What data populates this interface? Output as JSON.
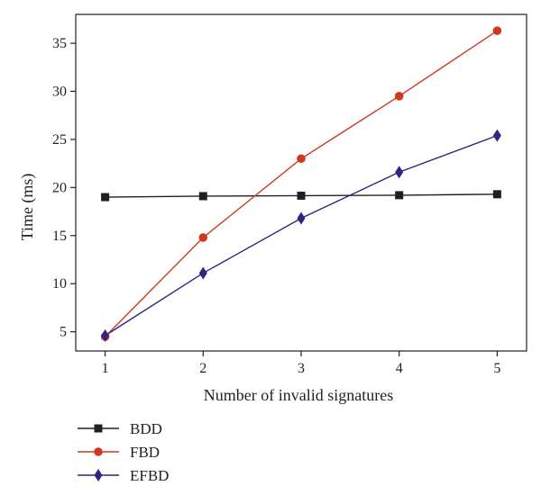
{
  "chart_data": {
    "type": "line",
    "xlabel": "Number of invalid signatures",
    "ylabel": "Time (ms)",
    "x": [
      1,
      2,
      3,
      4,
      5
    ],
    "xticks": [
      1,
      2,
      3,
      4,
      5
    ],
    "yticks": [
      5,
      10,
      15,
      20,
      25,
      30,
      35
    ],
    "xlim": [
      0.7,
      5.3
    ],
    "ylim": [
      3,
      38
    ],
    "grid": false,
    "legend_position": "bottom-left",
    "series": [
      {
        "name": "BDD",
        "values": [
          19.0,
          19.1,
          19.15,
          19.2,
          19.3
        ],
        "color": "#231f20",
        "marker": "square"
      },
      {
        "name": "FBD",
        "values": [
          4.5,
          14.8,
          23.0,
          29.5,
          36.3
        ],
        "color": "#cf3a1f",
        "marker": "circle"
      },
      {
        "name": "EFBD",
        "values": [
          4.6,
          11.1,
          16.8,
          21.6,
          25.4
        ],
        "color": "#2f2482",
        "marker": "diamond"
      }
    ]
  }
}
